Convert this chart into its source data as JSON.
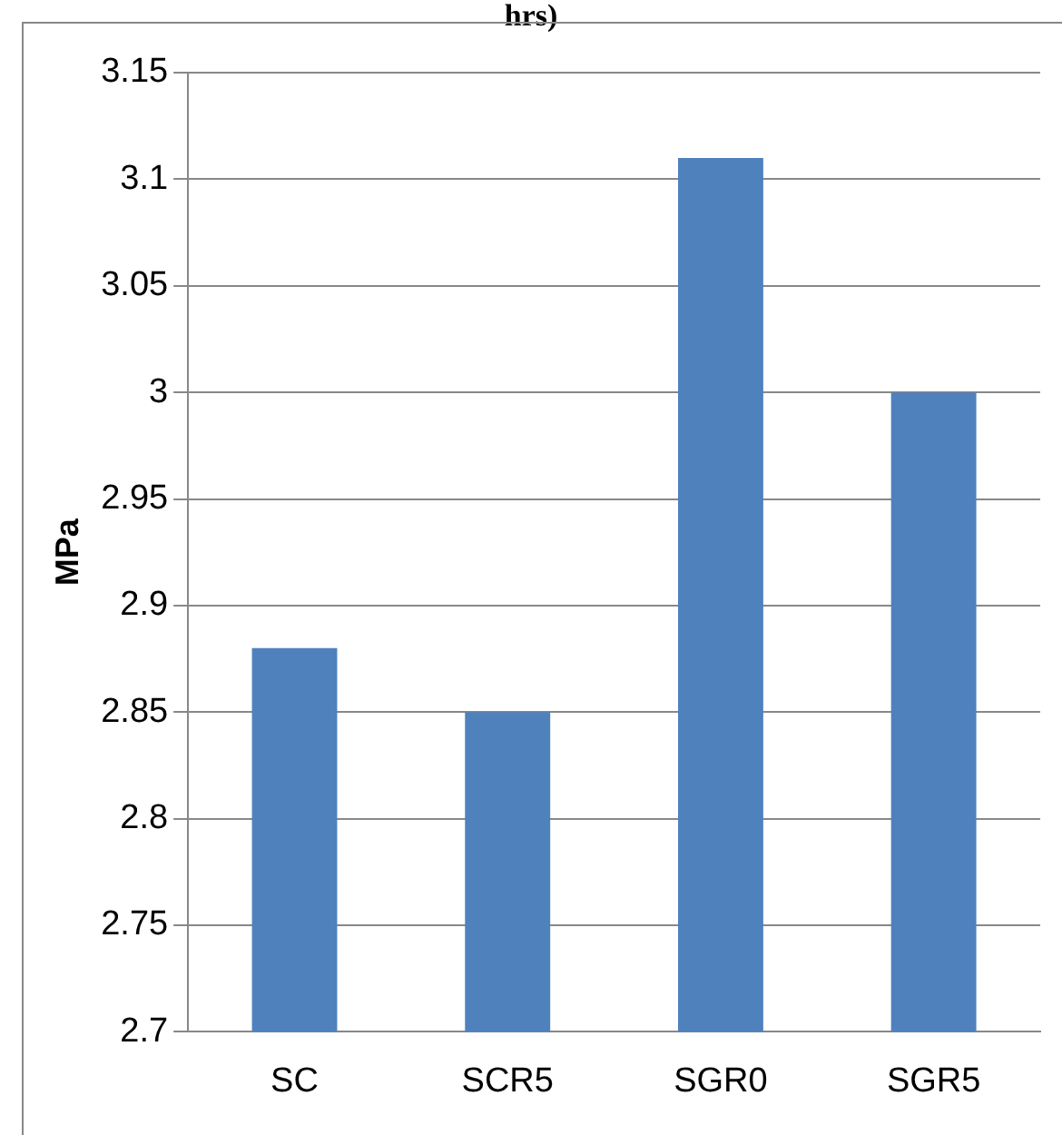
{
  "chart_data": {
    "type": "bar",
    "title": "hrs)",
    "ylabel": "MPa",
    "categories": [
      "SC",
      "SCR5",
      "SGR0",
      "SGR5"
    ],
    "values": [
      2.88,
      2.85,
      3.11,
      3.0
    ],
    "color": "#4f81bd",
    "ylim": [
      2.7,
      3.15
    ],
    "yticks": [
      2.7,
      2.75,
      2.8,
      2.85,
      2.9,
      2.95,
      3,
      3.05,
      3.1,
      3.15
    ],
    "grid": "y",
    "legend": false
  }
}
